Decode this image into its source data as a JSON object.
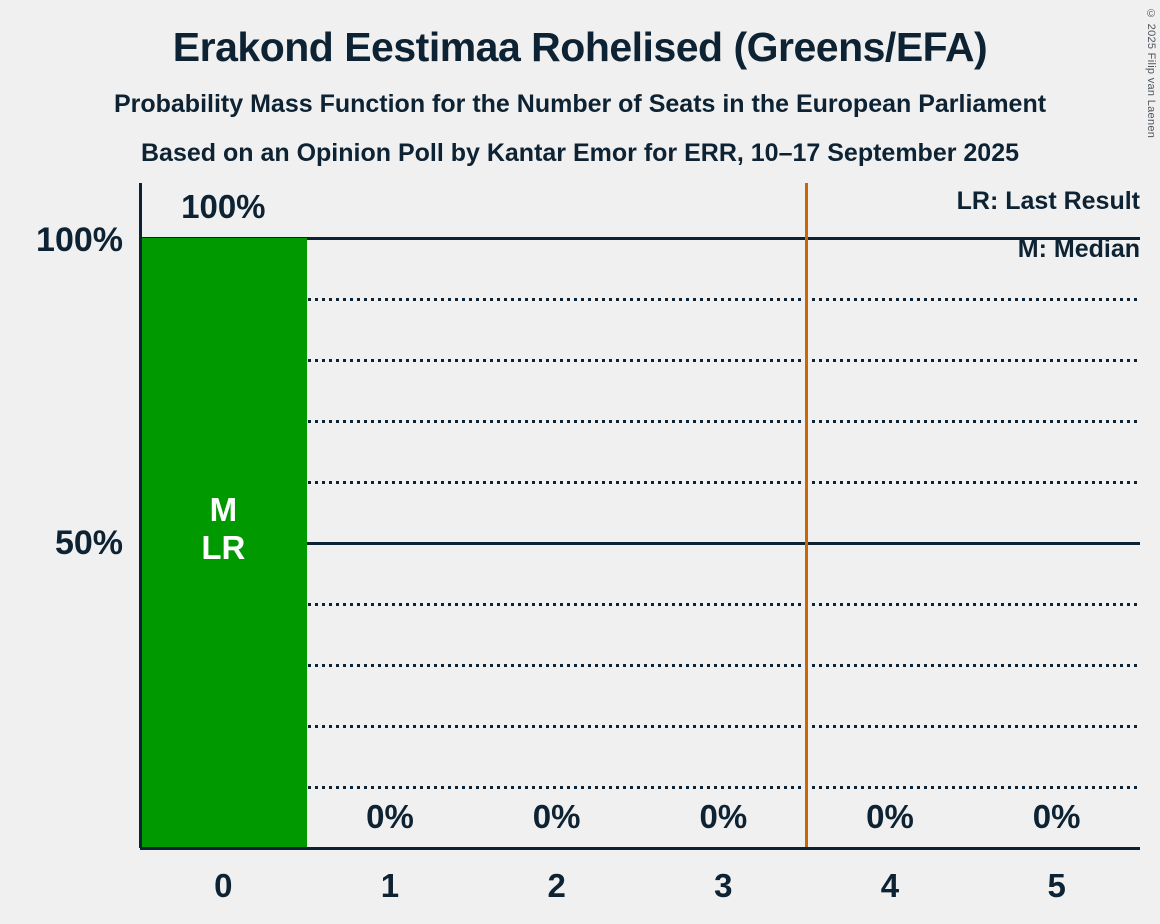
{
  "title": "Erakond Eestimaa Rohelised (Greens/EFA)",
  "subtitle1": "Probability Mass Function for the Number of Seats in the European Parliament",
  "subtitle2": "Based on an Opinion Poll by Kantar Emor for ERR, 10–17 September 2025",
  "copyright": "© 2025 Filip van Laenen",
  "legend": {
    "lr": "LR: Last Result",
    "m": "M: Median"
  },
  "y_axis": {
    "labels": [
      "100%",
      "50%"
    ]
  },
  "colors": {
    "background": "#F0F0F0",
    "text": "#0D2232",
    "bar": "#009900",
    "majority_line": "#CC6600",
    "bar_annotation_text": "#FFFFFF",
    "copyright_text": "#50575E"
  },
  "chart_data": {
    "type": "bar",
    "title": "Erakond Eestimaa Rohelised (Greens/EFA)",
    "subtitle": "Probability Mass Function for the Number of Seats in the European Parliament",
    "source": "Based on an Opinion Poll by Kantar Emor for ERR, 10–17 September 2025",
    "categories": [
      "0",
      "1",
      "2",
      "3",
      "4",
      "5"
    ],
    "values": [
      100,
      0,
      0,
      0,
      0,
      0
    ],
    "value_labels": [
      "100%",
      "0%",
      "0%",
      "0%",
      "0%",
      "0%"
    ],
    "xlabel": "",
    "ylabel": "",
    "ylim": [
      0,
      100
    ],
    "y_solid_gridlines_pct": [
      100,
      50
    ],
    "y_dotted_gridlines_pct": [
      90,
      80,
      70,
      60,
      40,
      30,
      20,
      10
    ],
    "y_tick_labels": [
      "100%",
      "50%"
    ],
    "median_category": "0",
    "last_result_category": "0",
    "bar_annotations": {
      "category_index": 0,
      "lines": [
        "M",
        "LR"
      ]
    },
    "majority_line_x": 3.5,
    "legend_entries": [
      "LR: Last Result",
      "M: Median"
    ],
    "legend_position": "top-right",
    "grid": "horizontal"
  }
}
